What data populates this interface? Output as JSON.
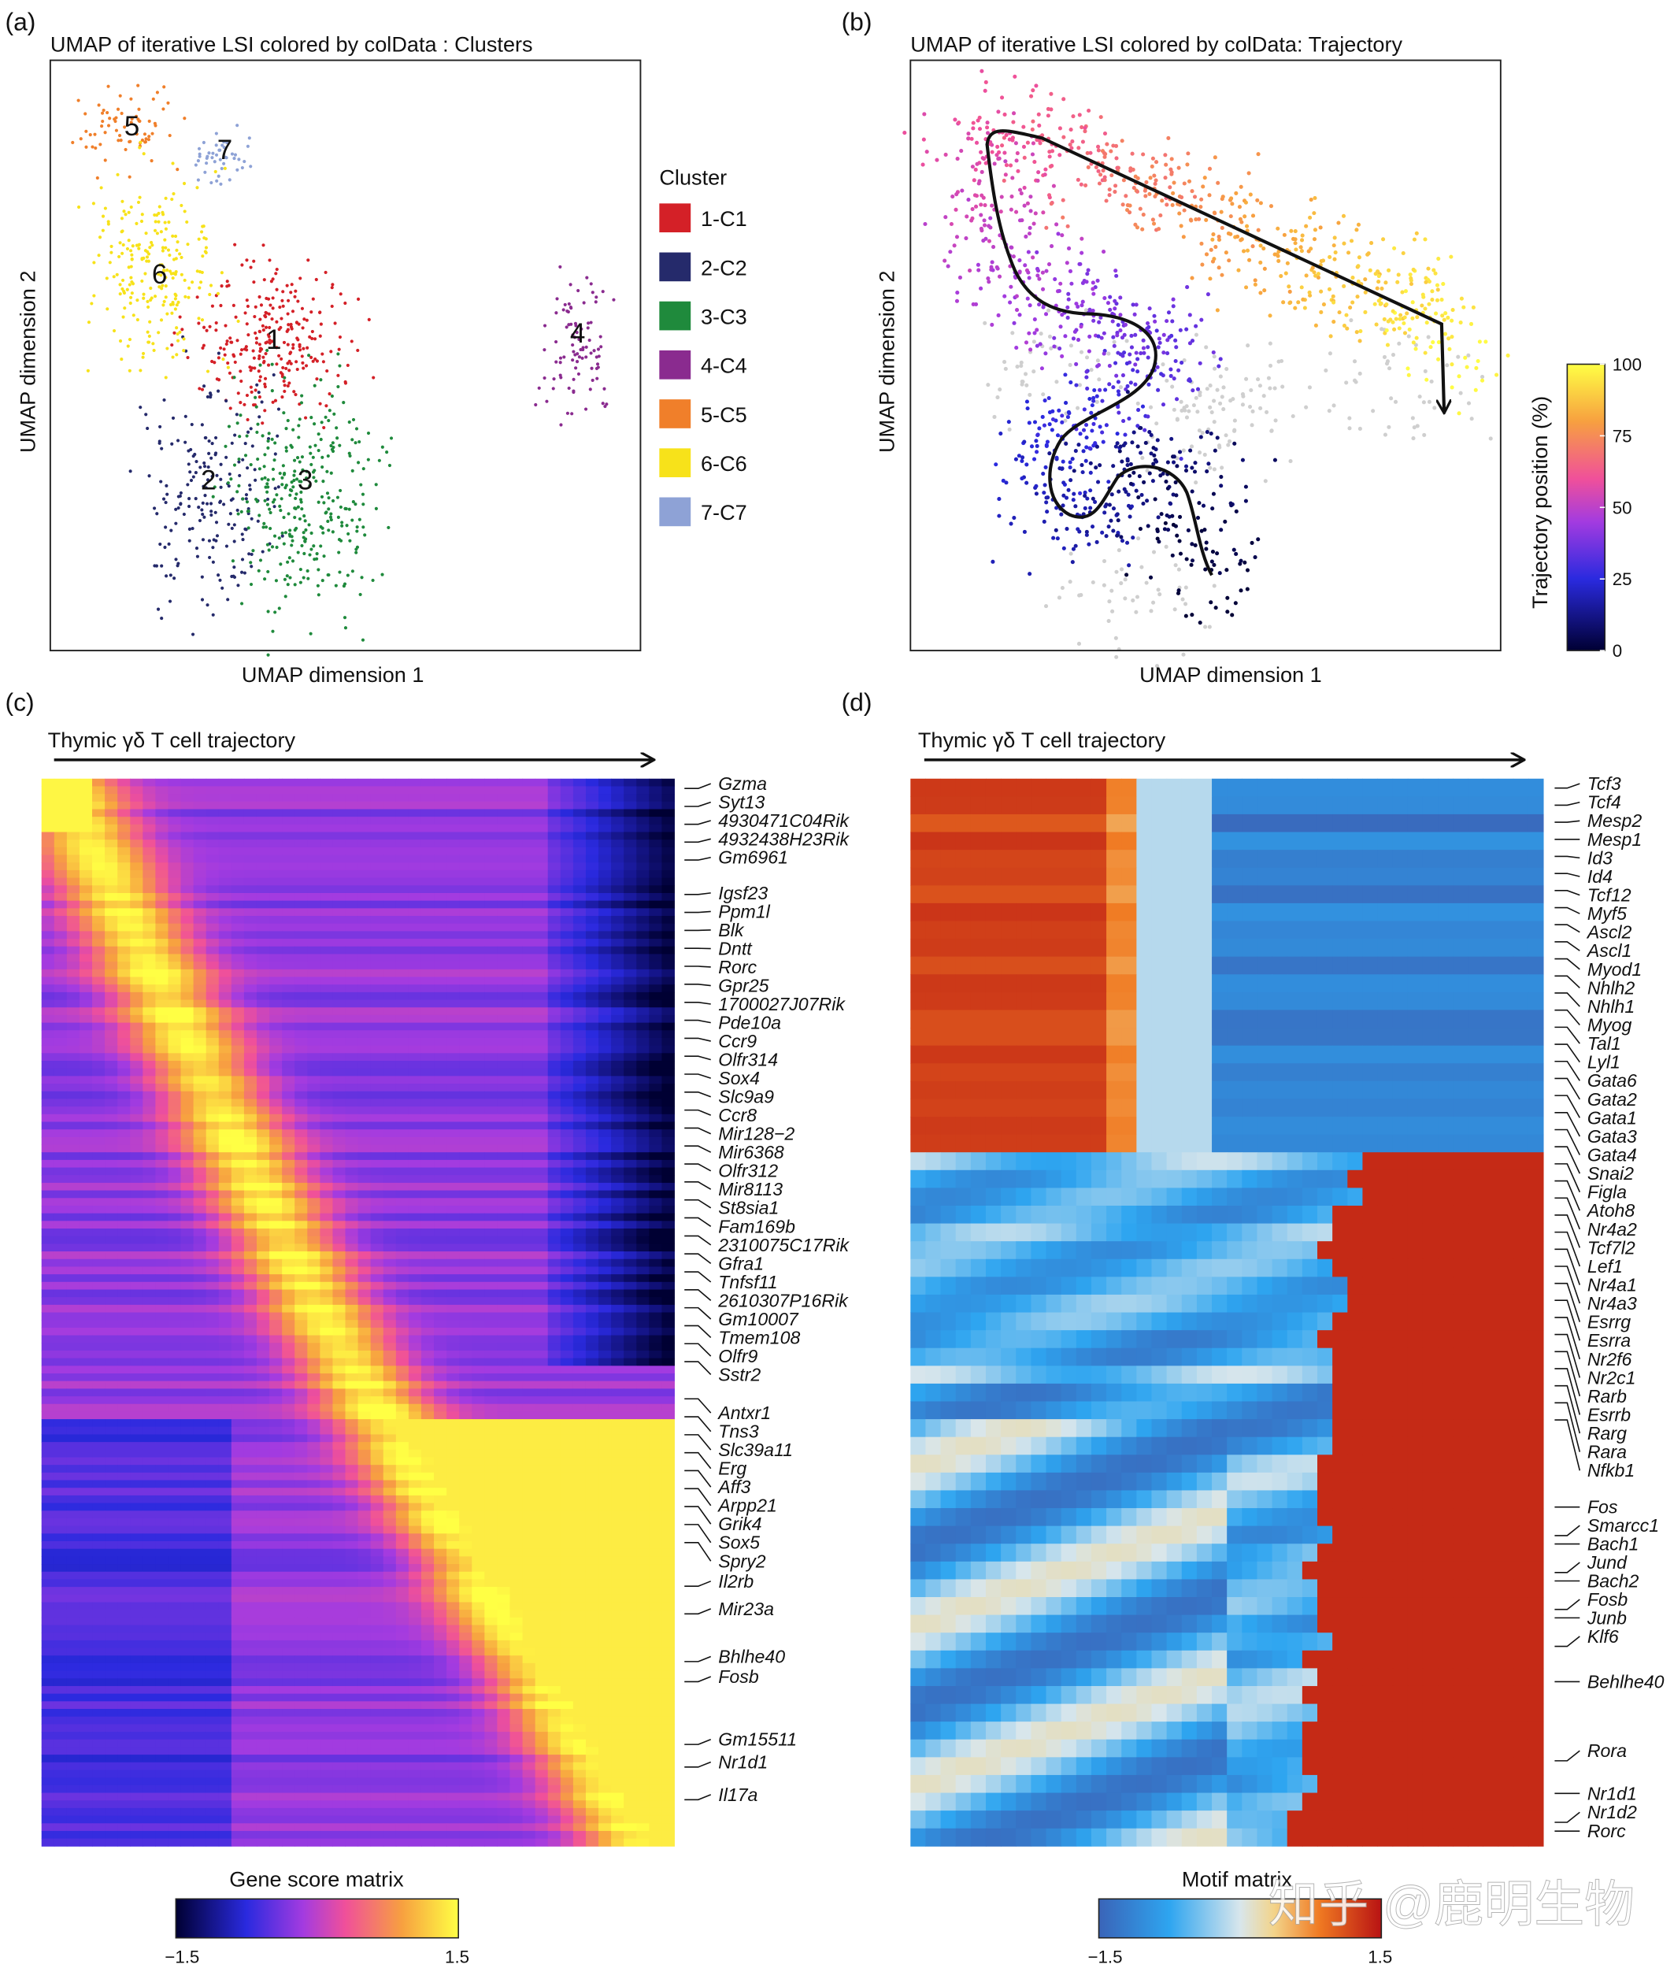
{
  "panel_tags": [
    "(a)",
    "(b)",
    "(c)",
    "(d)"
  ],
  "watermark": "知乎 @鹿明生物",
  "chart_data": [
    {
      "type": "scatter",
      "title": "UMAP of iterative LSI  colored by colData : Clusters",
      "xlabel": "UMAP dimension 1",
      "ylabel": "UMAP dimension 2",
      "legend_title": "Cluster",
      "legend_position": "right",
      "clusters": [
        {
          "label": "1-C1",
          "number": "1",
          "color": "#d42027"
        },
        {
          "label": "2-C2",
          "number": "2",
          "color": "#252a6b"
        },
        {
          "label": "3-C3",
          "number": "3",
          "color": "#1f8a3c"
        },
        {
          "label": "4-C4",
          "number": "4",
          "color": "#8a2b8f"
        },
        {
          "label": "5-C5",
          "number": "5",
          "color": "#f07f2a"
        },
        {
          "label": "6-C6",
          "number": "6",
          "color": "#f7e21a"
        },
        {
          "label": "7-C7",
          "number": "7",
          "color": "#8ea2d6"
        }
      ]
    },
    {
      "type": "scatter",
      "title": "UMAP of iterative LSI  colored by colData: Trajectory",
      "xlabel": "UMAP dimension 1",
      "ylabel": "UMAP dimension 2",
      "colorbar": {
        "label": "Trajectory position (%)",
        "ticks": [
          "100",
          "75",
          "50",
          "25",
          "0"
        ],
        "range": [
          0,
          100
        ]
      }
    },
    {
      "type": "heatmap",
      "title": "Thymic γδ T cell trajectory",
      "colorbar": {
        "label": "Gene score matrix",
        "min_label": "−1.5",
        "max_label": "1.5",
        "range": [
          -1.5,
          1.5
        ]
      },
      "genes": [
        "Gzma",
        "Syt13",
        "4930471C04Rik",
        "4932438H23Rik",
        "Gm6961",
        "Igsf23",
        "Ppm1l",
        "Blk",
        "Dntt",
        "Rorc",
        "Gpr25",
        "1700027J07Rik",
        "Pde10a",
        "Ccr9",
        "Olfr314",
        "Sox4",
        "Slc9a9",
        "Ccr8",
        "Mir128−2",
        "Mir6368",
        "Olfr312",
        "Mir8113",
        "St8sia1",
        "Fam169b",
        "2310075C17Rik",
        "Gfra1",
        "Tnfsf11",
        "2610307P16Rik",
        "Gm10007",
        "Tmem108",
        "Olfr9",
        "Sstr2",
        "Antxr1",
        "Tns3",
        "Slc39a11",
        "Erg",
        "Aff3",
        "Arpp21",
        "Grik4",
        "Sox5",
        "Spry2",
        "Il2rb",
        "Mir23a",
        "Bhlhe40",
        "Fosb",
        "Gm15511",
        "Nr1d1",
        "Il17a"
      ]
    },
    {
      "type": "heatmap",
      "title": "Thymic γδ T cell trajectory",
      "colorbar": {
        "label": "Motif matrix",
        "min_label": "−1.5",
        "max_label": "1.5",
        "range": [
          -1.5,
          1.5
        ]
      },
      "motifs": [
        "Tcf3",
        "Tcf4",
        "Mesp2",
        "Mesp1",
        "Id3",
        "Id4",
        "Tcf12",
        "Myf5",
        "Ascl2",
        "Ascl1",
        "Myod1",
        "Nhlh2",
        "Nhlh1",
        "Myog",
        "Tal1",
        "Lyl1",
        "Gata6",
        "Gata2",
        "Gata1",
        "Gata3",
        "Gata4",
        "Snai2",
        "Figla",
        "Atoh8",
        "Nr4a2",
        "Tcf7l2",
        "Lef1",
        "Nr4a1",
        "Nr4a3",
        "Esrrg",
        "Esrra",
        "Nr2f6",
        "Nr2c1",
        "Rarb",
        "Esrrb",
        "Rarg",
        "Rara",
        "Nfkb1",
        "Fos",
        "Smarcc1",
        "Bach1",
        "Jund",
        "Bach2",
        "Fosb",
        "Junb",
        "Klf6",
        "Behlhe40",
        "Rora",
        "Nr1d1",
        "Nr1d2",
        "Rorc"
      ]
    }
  ]
}
